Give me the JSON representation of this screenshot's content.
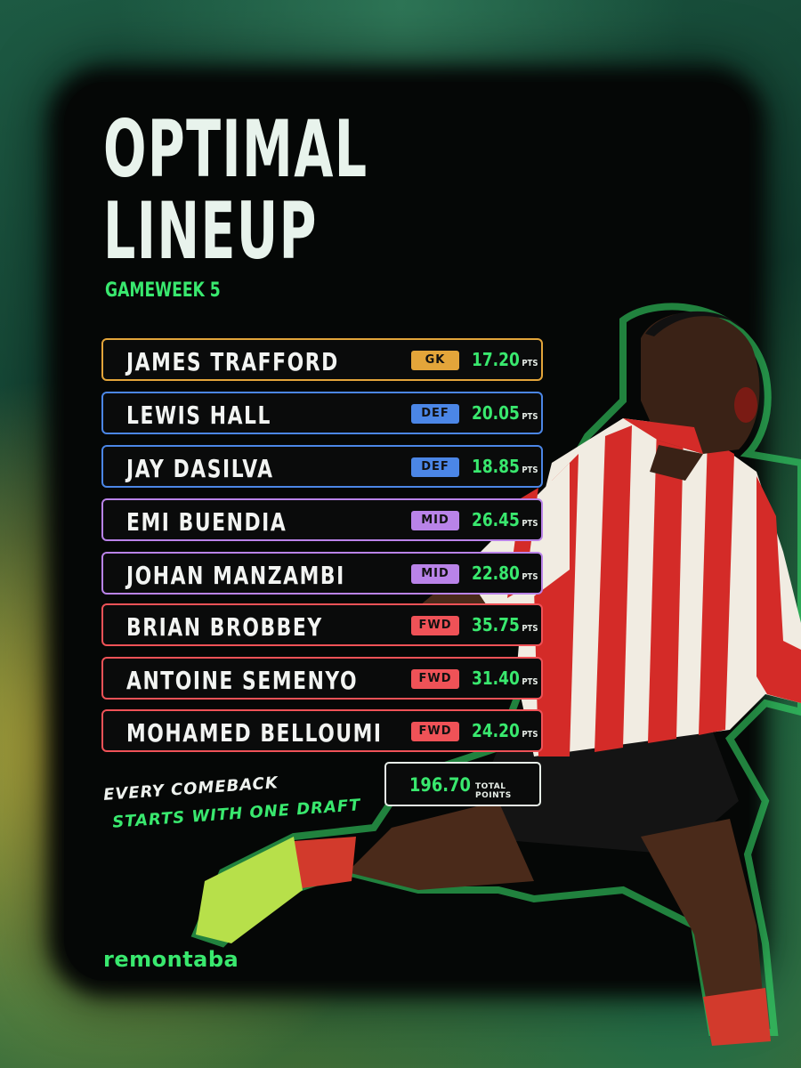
{
  "header": {
    "title_line1": "OPTIMAL",
    "title_line2": "LINEUP",
    "subtitle": "GAMEWEEK 5"
  },
  "lineup": [
    {
      "name": "JAMES TRAFFORD",
      "position": "GK",
      "points": "17.20",
      "unit": "PTS"
    },
    {
      "name": "LEWIS HALL",
      "position": "DEF",
      "points": "20.05",
      "unit": "PTS"
    },
    {
      "name": "JAY DASILVA",
      "position": "DEF",
      "points": "18.85",
      "unit": "PTS"
    },
    {
      "name": "EMI BUENDIA",
      "position": "MID",
      "points": "26.45",
      "unit": "PTS"
    },
    {
      "name": "JOHAN MANZAMBI",
      "position": "MID",
      "points": "22.80",
      "unit": "PTS"
    },
    {
      "name": "BRIAN BROBBEY",
      "position": "FWD",
      "points": "35.75",
      "unit": "PTS"
    },
    {
      "name": "ANTOINE SEMENYO",
      "position": "FWD",
      "points": "31.40",
      "unit": "PTS"
    },
    {
      "name": "MOHAMED BELLOUMI",
      "position": "FWD",
      "points": "24.20",
      "unit": "PTS"
    }
  ],
  "total": {
    "value": "196.70",
    "label": "TOTAL POINTS"
  },
  "slogan": {
    "line1": "EVERY COMEBACK",
    "line2": "STARTS WITH ONE DRAFT"
  },
  "brand": "remontaba",
  "colors": {
    "accent": "#39e86e",
    "GK": "#e3a53a",
    "DEF": "#4b86e6",
    "MID": "#b983e8",
    "FWD": "#ef5257"
  }
}
